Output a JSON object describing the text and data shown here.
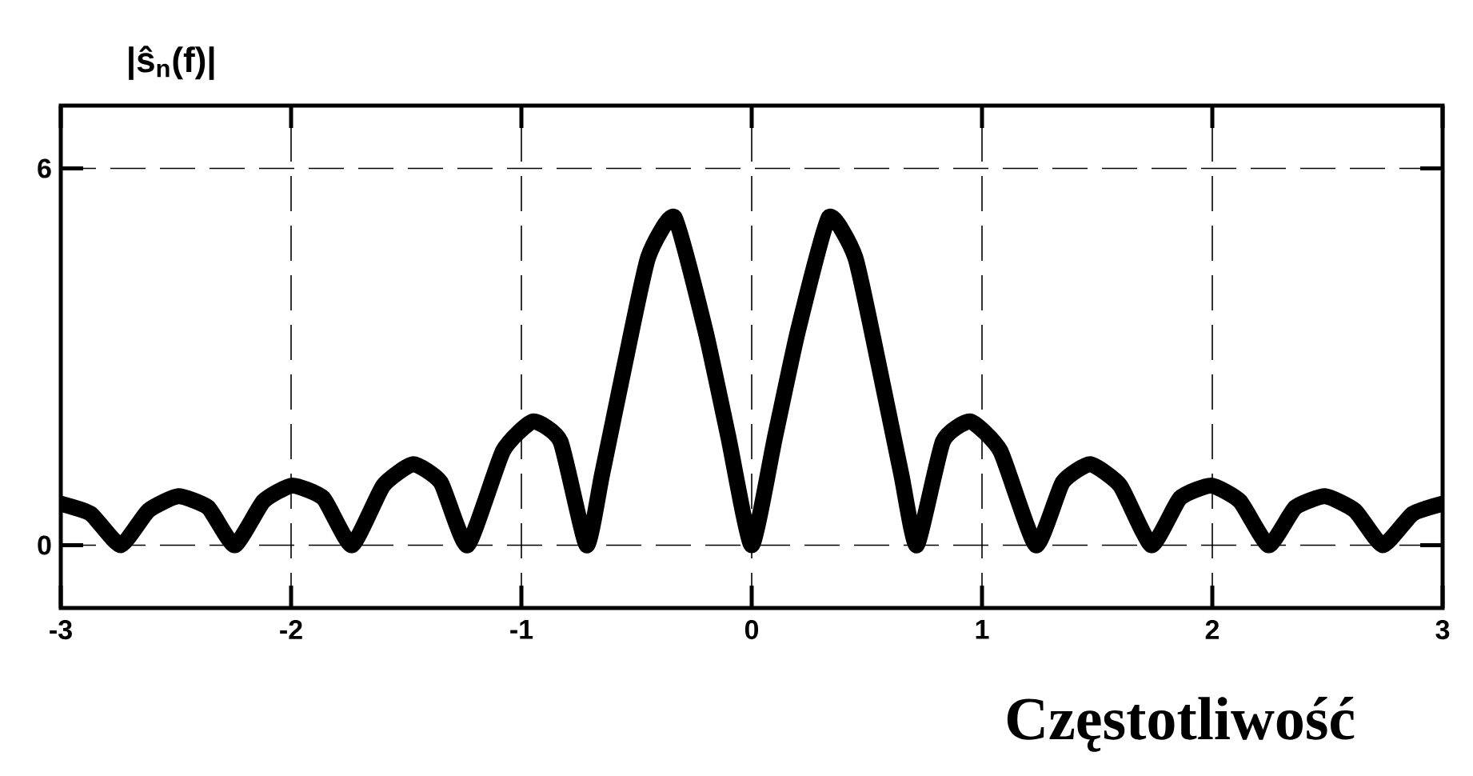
{
  "chart_data": {
    "type": "line",
    "xlabel": "Częstotliwość",
    "ylabel": "|ŝ$_{n}$(f)|",
    "x": [
      -3.0,
      -2.87,
      -2.74,
      -2.62,
      -2.49,
      -2.36,
      -2.245,
      -2.12,
      -1.995,
      -1.86,
      -1.736,
      -1.6,
      -1.47,
      -1.35,
      -1.234,
      -1.08,
      -0.95,
      -0.83,
      -0.717,
      -0.65,
      -0.55,
      -0.45,
      -0.335,
      -0.2,
      -0.1,
      0,
      0.1,
      0.2,
      0.335,
      0.45,
      0.55,
      0.65,
      0.717,
      0.83,
      0.95,
      1.08,
      1.234,
      1.35,
      1.47,
      1.6,
      1.736,
      1.86,
      1.995,
      2.12,
      2.245,
      2.36,
      2.49,
      2.62,
      2.74,
      2.87,
      3.0
    ],
    "series": [
      {
        "color": "#000000",
        "line_style": "solid",
        "values": [
          0.66,
          0.5,
          0,
          0.55,
          0.78,
          0.6,
          0,
          0.7,
          0.95,
          0.75,
          0,
          0.95,
          1.29,
          1.0,
          0,
          1.5,
          1.97,
          1.65,
          0,
          1.12,
          2.9,
          4.58,
          5.22,
          3.4,
          1.7,
          0,
          1.7,
          3.4,
          5.22,
          4.58,
          2.9,
          1.12,
          0,
          1.65,
          1.97,
          1.5,
          0,
          1.0,
          1.29,
          0.95,
          0,
          0.75,
          0.95,
          0.7,
          0,
          0.6,
          0.78,
          0.55,
          0,
          0.5,
          0.66
        ]
      }
    ],
    "xlim": [
      -3,
      3
    ],
    "ylim": [
      -1,
      7
    ],
    "xticks": [
      -3,
      -2,
      -1,
      0,
      1,
      2,
      3
    ],
    "yticks": [
      0,
      6
    ],
    "grid": true
  }
}
